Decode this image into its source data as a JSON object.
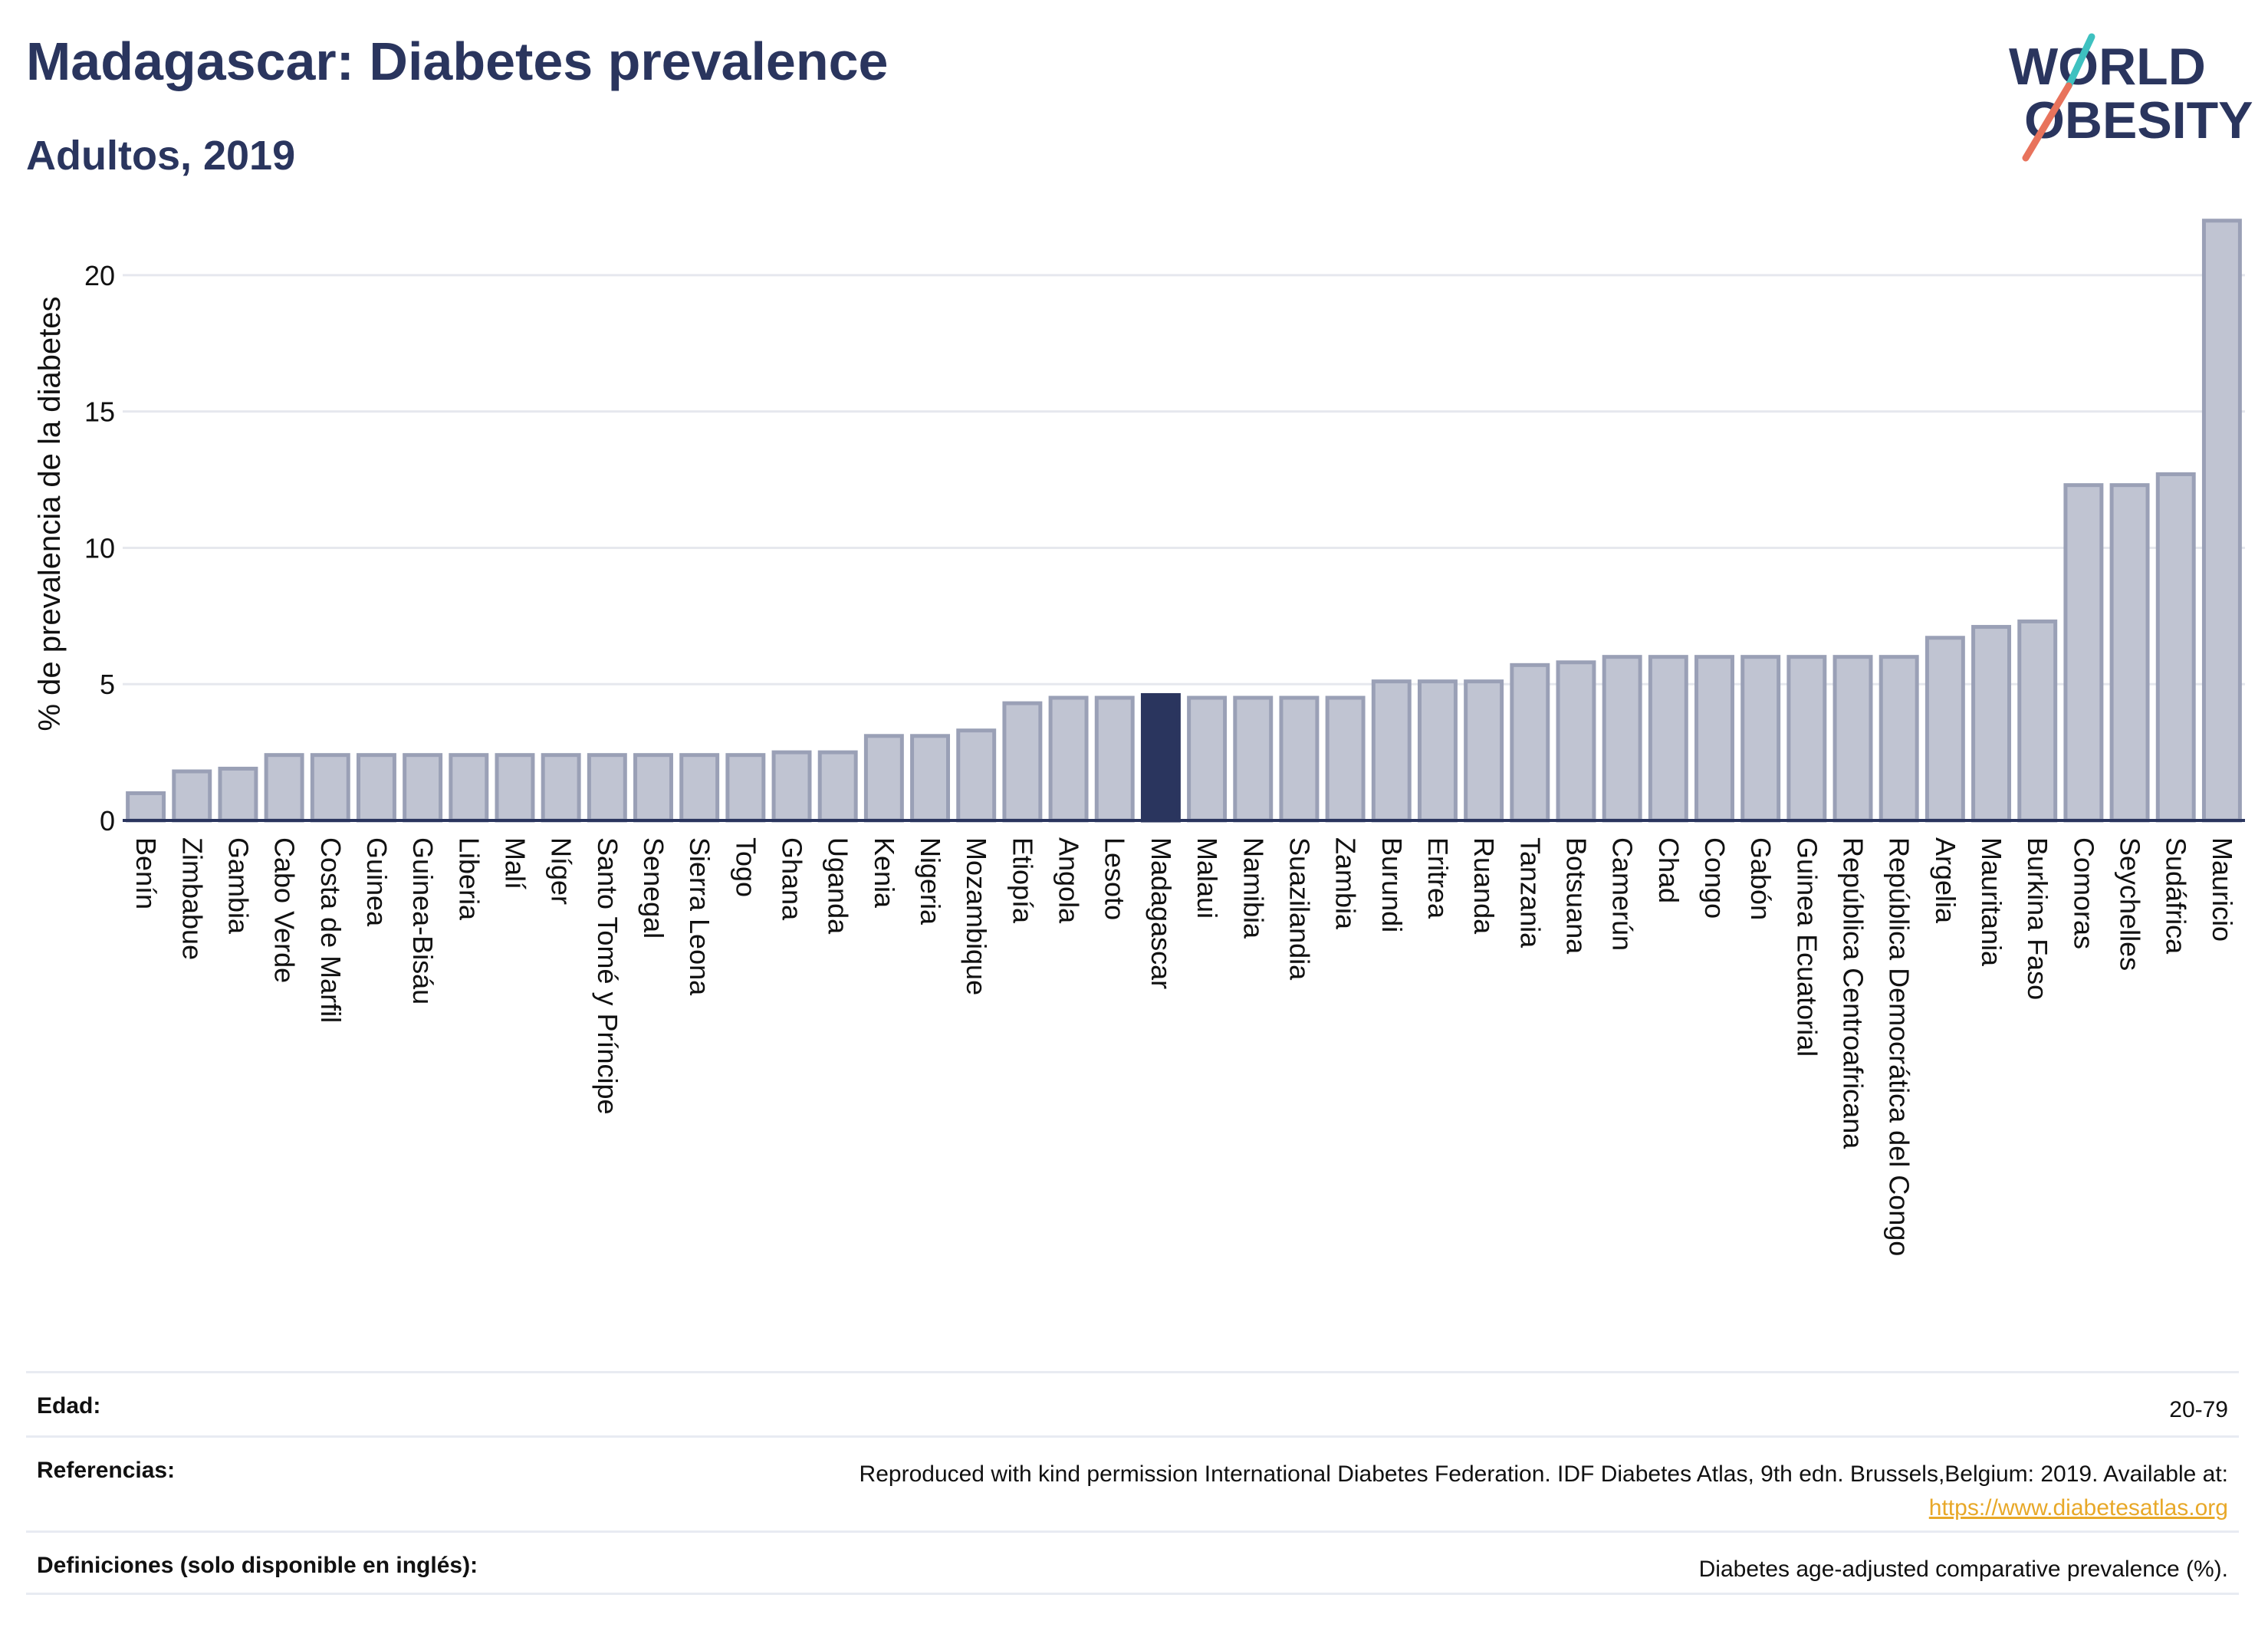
{
  "header": {
    "title": "Madagascar: Diabetes prevalence",
    "subtitle": "Adultos, 2019",
    "logo_line1": "WORLD",
    "logo_line2": "OBESITY"
  },
  "colors": {
    "primary": "#2a355e",
    "bar": "#c0c4d2",
    "bar_stroke": "#9aa0b6",
    "highlight": "#2a355e",
    "link": "#e8a828",
    "logo_teal": "#3ec1c0",
    "logo_coral": "#e8735c"
  },
  "chart_data": {
    "type": "bar",
    "ylabel": "% de prevalencia de la diabetes",
    "xlabel": "",
    "ylim": [
      0,
      22.5
    ],
    "yticks": [
      0,
      5,
      10,
      15,
      20
    ],
    "grid": true,
    "highlight": "Madagascar",
    "categories": [
      "Benín",
      "Zimbabue",
      "Gambia",
      "Cabo Verde",
      "Costa de Marfil",
      "Guinea",
      "Guinea-Bisáu",
      "Liberia",
      "Malí",
      "Níger",
      "Santo Tomé y Príncipe",
      "Senegal",
      "Sierra Leona",
      "Togo",
      "Ghana",
      "Uganda",
      "Kenia",
      "Nigeria",
      "Mozambique",
      "Etiopía",
      "Angola",
      "Lesoto",
      "Madagascar",
      "Malaui",
      "Namibia",
      "Suazilandia",
      "Zambia",
      "Burundi",
      "Eritrea",
      "Ruanda",
      "Tanzania",
      "Botsuana",
      "Camerún",
      "Chad",
      "Congo",
      "Gabón",
      "Guinea Ecuatorial",
      "República Centroafricana",
      "República Democrática del Congo",
      "Argelia",
      "Mauritania",
      "Burkina Faso",
      "Comoras",
      "Seychelles",
      "Sudáfrica",
      "Mauricio"
    ],
    "values": [
      1.0,
      1.8,
      1.9,
      2.4,
      2.4,
      2.4,
      2.4,
      2.4,
      2.4,
      2.4,
      2.4,
      2.4,
      2.4,
      2.4,
      2.5,
      2.5,
      3.1,
      3.1,
      3.3,
      4.3,
      4.5,
      4.5,
      4.6,
      4.5,
      4.5,
      4.5,
      4.5,
      5.1,
      5.1,
      5.1,
      5.7,
      5.8,
      6.0,
      6.0,
      6.0,
      6.0,
      6.0,
      6.0,
      6.0,
      6.7,
      7.1,
      7.3,
      12.3,
      12.3,
      12.7,
      22.0
    ]
  },
  "info": {
    "age_label": "Edad:",
    "age_value": "20-79",
    "ref_label": "Referencias:",
    "ref_text": "Reproduced with kind permission International Diabetes Federation. IDF Diabetes Atlas, 9th edn. Brussels,Belgium: 2019. Available at:",
    "ref_link": "https://www.diabetesatlas.org",
    "def_label": "Definiciones (solo disponible en inglés):",
    "def_value": "Diabetes age-adjusted comparative prevalence (%)."
  }
}
